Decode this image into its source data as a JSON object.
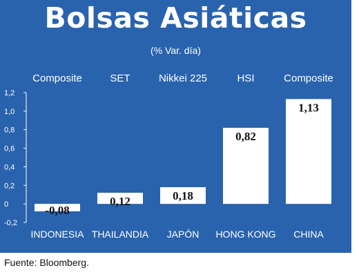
{
  "title": "Bolsas Asiáticas",
  "subtitle": "(% Var. día)",
  "source": "Fuente: Bloomberg.",
  "colors": {
    "panel": "#2a63ad",
    "bar": "#ffffff",
    "text": "#ffffff",
    "value_text": "#111111"
  },
  "chart_data": {
    "type": "bar",
    "categories": [
      "INDONESIA",
      "THAILANDIA",
      "JAPÓN",
      "HONG KONG",
      "CHINA"
    ],
    "index_names": [
      "Composite",
      "SET",
      "Nikkei 225",
      "HSI",
      "Composite"
    ],
    "values": [
      -0.08,
      0.12,
      0.18,
      0.82,
      1.13
    ],
    "value_labels": [
      "-0,08",
      "0,12",
      "0,18",
      "0,82",
      "1,13"
    ],
    "ylim": [
      -0.2,
      1.2
    ],
    "yticks": [
      -0.2,
      0,
      0.2,
      0.4,
      0.6,
      0.8,
      1.0,
      1.2
    ],
    "ytick_labels": [
      "-0,2",
      "0",
      "0,2",
      "0,4",
      "0,6",
      "0,8",
      "1,0",
      "1,2"
    ],
    "grid": false,
    "legend": "none"
  }
}
